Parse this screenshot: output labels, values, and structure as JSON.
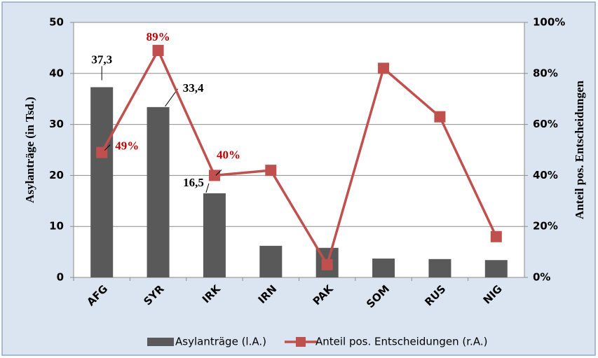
{
  "chart_data": {
    "type": "bar_line",
    "categories": [
      "AFG",
      "SYR",
      "IRK",
      "IRN",
      "PAK",
      "SOM",
      "RUS",
      "NIG"
    ],
    "series": [
      {
        "name": "Asylanträge (l.A.)",
        "type": "bar",
        "color": "#595959",
        "values": [
          37.3,
          33.4,
          16.5,
          6.2,
          5.8,
          3.7,
          3.6,
          3.4
        ],
        "value_labels": [
          "37,3",
          "33,4",
          "16,5",
          null,
          null,
          null,
          null,
          null
        ]
      },
      {
        "name": "Anteil pos. Entscheidungen (r.A.)",
        "type": "line",
        "axis": "y2",
        "color": "#c0504d",
        "values": [
          49,
          89,
          40,
          42,
          5,
          82,
          63,
          16
        ],
        "value_labels": [
          "49%",
          "89%",
          "40%",
          null,
          null,
          null,
          null,
          null
        ]
      }
    ],
    "ylabel": "Asylanträge (in Tsd.)",
    "y2label": "Anteil pos. Entscheidungen",
    "ylim": [
      0,
      50
    ],
    "yticks": [
      0,
      10,
      20,
      30,
      40,
      50
    ],
    "y2lim": [
      0,
      100
    ],
    "y2ticks": [
      {
        "value": 0,
        "label": "0%"
      },
      {
        "value": 20,
        "label": "20%"
      },
      {
        "value": 40,
        "label": "40%"
      },
      {
        "value": 60,
        "label": "60%"
      },
      {
        "value": 80,
        "label": "80%"
      },
      {
        "value": 100,
        "label": "100%"
      }
    ],
    "grid": true,
    "legend": "bottom"
  }
}
